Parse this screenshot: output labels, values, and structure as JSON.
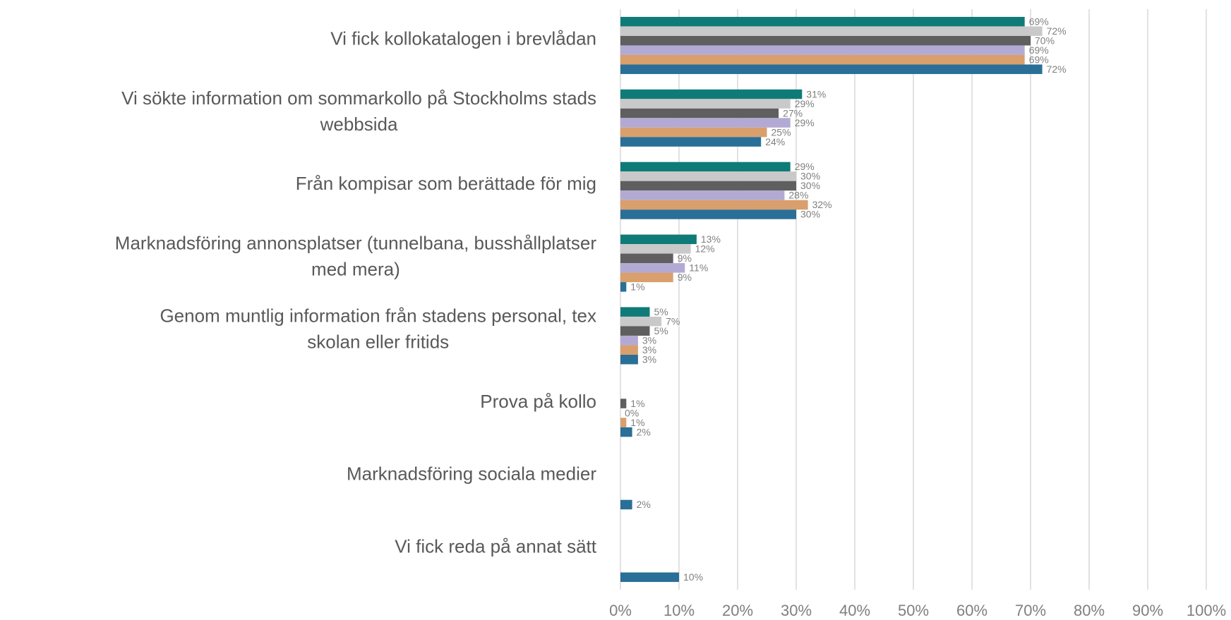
{
  "chart_data": {
    "type": "barh",
    "categories": [
      "Vi fick kollokatalogen i brevlådan",
      "Vi sökte information om sommarkollo på Stockholms stads\nwebbsida",
      "Från kompisar som berättade för mig",
      "Marknadsföring annonsplatser (tunnelbana, busshållplatser\nmed mera)",
      "Genom muntlig information från stadens personal, tex\nskolan eller fritids",
      "Prova på kollo",
      "Marknadsföring sociala medier",
      "Vi fick reda på annat sätt"
    ],
    "series": [
      {
        "color": "#0f7b78",
        "values": [
          69,
          31,
          29,
          13,
          5,
          null,
          null,
          null
        ],
        "value_labels": [
          "69%",
          "31%",
          "29%",
          "13%",
          "5%",
          null,
          null,
          null
        ]
      },
      {
        "color": "#c9c9c9",
        "values": [
          72,
          29,
          30,
          12,
          7,
          null,
          null,
          null
        ],
        "value_labels": [
          "72%",
          "29%",
          "30%",
          "12%",
          "7%",
          null,
          null,
          null
        ]
      },
      {
        "color": "#5f5f5f",
        "values": [
          70,
          27,
          30,
          9,
          5,
          1,
          null,
          null
        ],
        "value_labels": [
          "70%",
          "27%",
          "30%",
          "9%",
          "5%",
          "1%",
          null,
          null
        ]
      },
      {
        "color": "#b3aad4",
        "values": [
          69,
          29,
          28,
          11,
          3,
          0,
          null,
          null
        ],
        "value_labels": [
          "69%",
          "29%",
          "28%",
          "11%",
          "3%",
          "0%",
          null,
          null
        ]
      },
      {
        "color": "#d99f6c",
        "values": [
          69,
          25,
          32,
          9,
          3,
          1,
          null,
          null
        ],
        "value_labels": [
          "69%",
          "25%",
          "32%",
          "9%",
          "3%",
          "1%",
          null,
          null
        ]
      },
      {
        "color": "#2a6f97",
        "values": [
          72,
          24,
          30,
          1,
          3,
          2,
          2,
          10
        ],
        "value_labels": [
          "72%",
          "24%",
          "30%",
          "1%",
          "3%",
          "2%",
          "2%",
          "10%"
        ]
      }
    ],
    "xlim": [
      0,
      100
    ],
    "xticks": [
      {
        "value": 0,
        "label": "0%"
      },
      {
        "value": 10,
        "label": "10%"
      },
      {
        "value": 20,
        "label": "20%"
      },
      {
        "value": 30,
        "label": "30%"
      },
      {
        "value": 40,
        "label": "40%"
      },
      {
        "value": 50,
        "label": "50%"
      },
      {
        "value": 60,
        "label": "60%"
      },
      {
        "value": 70,
        "label": "70%"
      },
      {
        "value": 80,
        "label": "80%"
      },
      {
        "value": 90,
        "label": "90%"
      },
      {
        "value": 100,
        "label": "100%"
      }
    ],
    "grid": true
  }
}
